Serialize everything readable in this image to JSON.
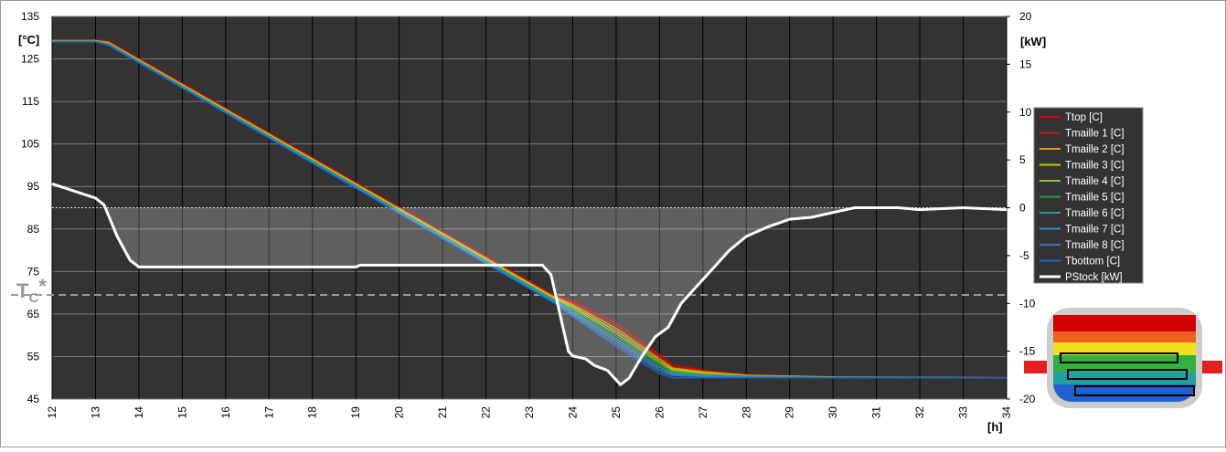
{
  "chart_data": {
    "type": "line",
    "x": [
      12,
      13,
      13.3,
      23.5,
      24,
      25,
      26,
      26.3,
      27,
      28,
      30,
      34
    ],
    "xlim": [
      12,
      34
    ],
    "xticks": [
      12,
      13,
      14,
      15,
      16,
      17,
      18,
      19,
      20,
      21,
      22,
      23,
      24,
      25,
      26,
      27,
      28,
      29,
      30,
      31,
      32,
      33,
      34
    ],
    "ylim": [
      45,
      135
    ],
    "yticks": [
      45,
      55,
      65,
      75,
      85,
      95,
      105,
      115,
      125,
      135
    ],
    "y2lim": [
      -20,
      20
    ],
    "y2ticks": [
      -20,
      -15,
      -10,
      -5,
      0,
      5,
      10,
      15,
      20
    ],
    "ylabel": "[°C]",
    "y2label": "[kW]",
    "xlabel": "[h]",
    "grid": true,
    "annotation": {
      "text": "T",
      "sub": "C",
      "suffix": "*",
      "value": 69.5
    },
    "series": [
      {
        "name": "Ttop [C]",
        "color": "#e00000",
        "values": [
          129.5,
          129.5,
          129.2,
          69.8,
          68.0,
          62.8,
          55.5,
          53.0,
          51.8,
          50.8,
          50.2,
          50
        ]
      },
      {
        "name": "Tmaille 1 [C]",
        "color": "#c01818",
        "values": [
          129.4,
          129.4,
          129.0,
          69.6,
          67.6,
          62.2,
          55.0,
          52.6,
          51.6,
          50.7,
          50.2,
          50
        ]
      },
      {
        "name": "Tmaille 2 [C]",
        "color": "#e0a000",
        "values": [
          129.3,
          129.3,
          128.9,
          69.4,
          67.2,
          61.6,
          54.5,
          52.3,
          51.4,
          50.6,
          50.2,
          50
        ]
      },
      {
        "name": "Tmaille 3 [C]",
        "color": "#c8c800",
        "values": [
          129.3,
          129.3,
          128.8,
          69.2,
          66.8,
          61.0,
          54.0,
          52.0,
          51.2,
          50.5,
          50.1,
          50
        ]
      },
      {
        "name": "Tmaille 4 [C]",
        "color": "#90c040",
        "values": [
          129.2,
          129.2,
          128.7,
          69.0,
          66.4,
          60.4,
          53.5,
          51.7,
          51.0,
          50.5,
          50.1,
          50
        ]
      },
      {
        "name": "Tmaille 5 [C]",
        "color": "#20a040",
        "values": [
          129.2,
          129.2,
          128.6,
          68.8,
          66.0,
          59.8,
          53.0,
          51.4,
          50.8,
          50.4,
          50.1,
          50
        ]
      },
      {
        "name": "Tmaille 6 [C]",
        "color": "#20a0a0",
        "values": [
          129.1,
          129.1,
          128.5,
          68.6,
          65.6,
          59.2,
          52.5,
          51.1,
          50.6,
          50.3,
          50.1,
          50
        ]
      },
      {
        "name": "Tmaille 7 [C]",
        "color": "#3090c0",
        "values": [
          129.1,
          129.1,
          128.4,
          68.4,
          65.2,
          58.6,
          52.0,
          50.8,
          50.4,
          50.2,
          50,
          50
        ]
      },
      {
        "name": "Tmaille 8 [C]",
        "color": "#4070c0",
        "values": [
          129.0,
          129.0,
          128.3,
          68.2,
          64.8,
          58.0,
          51.5,
          50.5,
          50.3,
          50.1,
          50,
          50
        ]
      },
      {
        "name": "Tbottom [C]",
        "color": "#2060d0",
        "values": [
          129.0,
          129.0,
          128.2,
          68.0,
          64.4,
          57.4,
          51.0,
          50.0,
          50.0,
          50.0,
          50,
          50
        ]
      },
      {
        "name": "PStock [kW]",
        "color": "#ffffff",
        "axis": "y2",
        "x": [
          12,
          13,
          13.2,
          13.5,
          13.8,
          14,
          19,
          19.1,
          23.3,
          23.5,
          23.7,
          23.9,
          24,
          24.3,
          24.5,
          24.8,
          25.1,
          25.3,
          25.6,
          25.9,
          26.2,
          26.5,
          26.8,
          27,
          27.3,
          27.6,
          28,
          28.5,
          29,
          29.5,
          30,
          30.5,
          31.5,
          32,
          33,
          34
        ],
        "values": [
          2.5,
          1,
          0.3,
          -3,
          -5.5,
          -6.2,
          -6.2,
          -6,
          -6,
          -7,
          -11,
          -15,
          -15.5,
          -15.8,
          -16.5,
          -17,
          -18.5,
          -17.8,
          -15.5,
          -13.5,
          -12.5,
          -10,
          -8.5,
          -7.5,
          -6,
          -4.5,
          -3,
          -2,
          -1.2,
          -1,
          -0.5,
          0,
          0,
          -0.2,
          0,
          -0.2
        ]
      }
    ]
  }
}
